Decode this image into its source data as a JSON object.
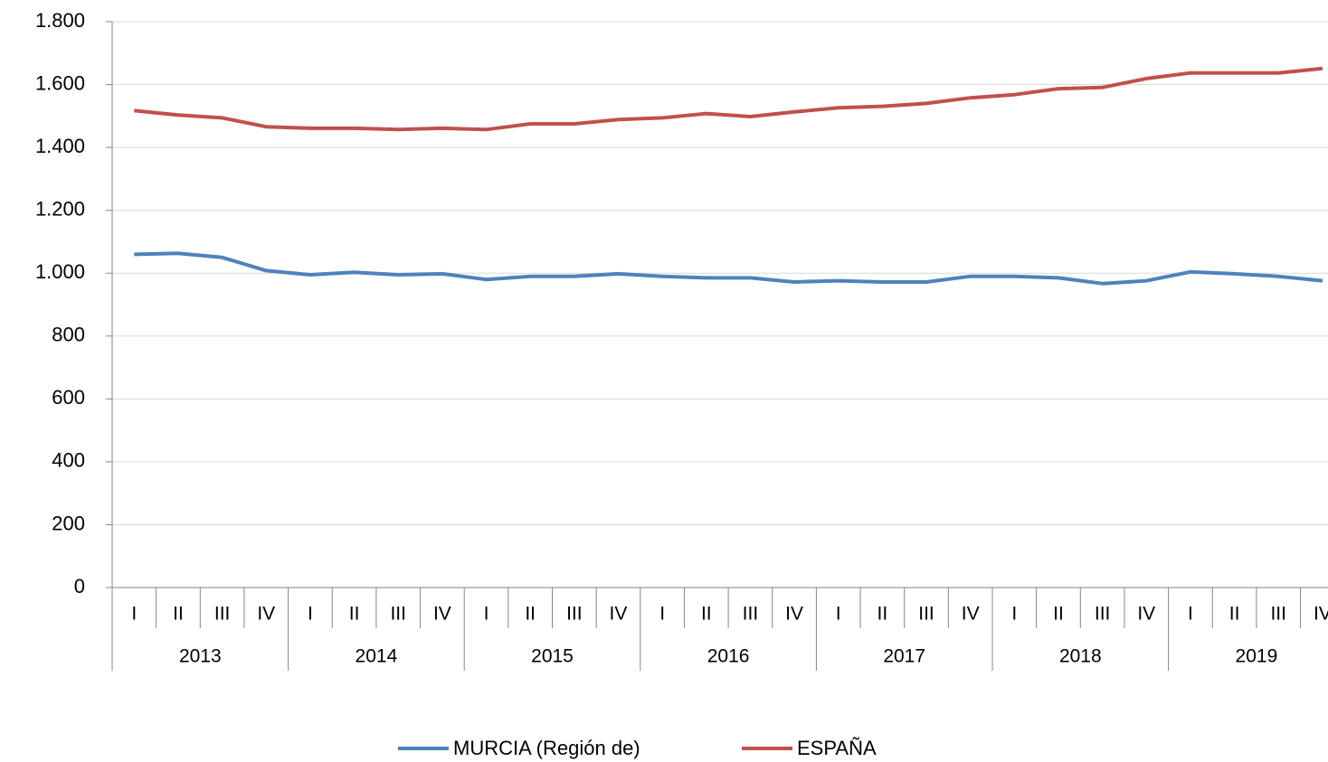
{
  "chart_data": {
    "type": "line",
    "categories": [
      "I",
      "II",
      "III",
      "IV",
      "I",
      "II",
      "III",
      "IV",
      "I",
      "II",
      "III",
      "IV",
      "I",
      "II",
      "III",
      "IV",
      "I",
      "II",
      "III",
      "IV",
      "I",
      "II",
      "III",
      "IV",
      "I",
      "II",
      "III",
      "IV"
    ],
    "years": [
      "2013",
      "2014",
      "2015",
      "2016",
      "2017",
      "2018",
      "2019"
    ],
    "series": [
      {
        "name": "MURCIA (Región de)",
        "color": "#4f81bd",
        "values": [
          1060,
          1063,
          1050,
          1008,
          995,
          1003,
          995,
          998,
          980,
          990,
          990,
          998,
          990,
          985,
          985,
          972,
          976,
          972,
          972,
          990,
          990,
          985,
          967,
          976,
          1004,
          998,
          990,
          976
        ]
      },
      {
        "name": "ESPAÑA",
        "color": "#c0504d",
        "values": [
          1517,
          1503,
          1494,
          1466,
          1461,
          1461,
          1457,
          1461,
          1457,
          1475,
          1475,
          1489,
          1494,
          1508,
          1498,
          1513,
          1526,
          1531,
          1540,
          1558,
          1568,
          1587,
          1591,
          1619,
          1637,
          1637,
          1637,
          1651
        ]
      }
    ],
    "ylim": [
      0,
      1800
    ],
    "yticks": [
      0,
      200,
      400,
      600,
      800,
      {
        "value": 1000,
        "label": "1.000"
      },
      {
        "value": 1200,
        "label": "1.200"
      },
      {
        "value": 1400,
        "label": "1.400"
      },
      {
        "value": 1600,
        "label": "1.600"
      },
      {
        "value": 1800,
        "label": "1.800"
      }
    ],
    "grid": true
  }
}
